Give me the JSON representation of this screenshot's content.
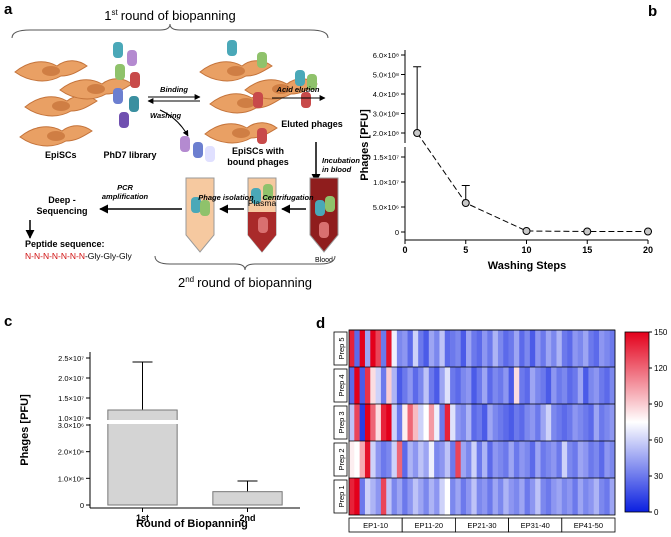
{
  "diagram": {
    "label": "a",
    "round1": {
      "number": "1",
      "suffix": "st",
      "text": "round of biopanning"
    },
    "round2": {
      "number": "2",
      "suffix": "nd",
      "text": "round of biopanning"
    },
    "cells": "EpiSCs",
    "library": "PhD7 library",
    "binding": "Binding",
    "washing": "Washing",
    "acid": "Acid elution",
    "eluted": "Eluted phages",
    "bound": [
      "EpiSCs with",
      "bound phages"
    ],
    "incubation": [
      "Incubation",
      "in blood"
    ],
    "sequencing": [
      "Deep -",
      "Sequencing"
    ],
    "pcr": [
      "PCR",
      "amplification"
    ],
    "isolation": "Phage isolation",
    "centrifugation": "Centrifugation",
    "plasma": "Plasma",
    "blood": "Blood",
    "peptide_title": "Peptide sequence:",
    "peptide_random": "N-N-N-N-N-N-N",
    "peptide_linker": "-Gly-Gly-Gly"
  },
  "chart_data": [
    {
      "type": "line",
      "panel": "b",
      "xlabel": "Washing Steps",
      "ylabel": "Phages [PFU]",
      "x": [
        1,
        5,
        10,
        15,
        20
      ],
      "values": [
        200000000,
        5800000,
        200000,
        100000,
        100000
      ],
      "errors": [
        340000000,
        3500000,
        0,
        0,
        0
      ],
      "xlim": [
        0,
        20
      ],
      "xticks": [
        0,
        5,
        10,
        15,
        20
      ],
      "ylim": [
        0,
        600000000
      ],
      "ybreak": [
        15000000,
        200000000
      ],
      "yticks": [
        0,
        {
          "value": 5000000,
          "label": "5.0×10⁶"
        },
        {
          "value": 10000000,
          "label": "1.0×10⁷"
        },
        {
          "value": 15000000,
          "label": "1.5×10⁷"
        },
        {
          "value": 200000000,
          "label": "2.0×10⁸"
        },
        {
          "value": 300000000,
          "label": "3.0×10⁸"
        },
        {
          "value": 400000000,
          "label": "4.0×10⁸"
        },
        {
          "value": 500000000,
          "label": "5.0×10⁸"
        },
        {
          "value": 600000000,
          "label": "6.0×10⁸"
        }
      ],
      "color": "#c8c8c8",
      "line_style": "dashed"
    },
    {
      "type": "bar",
      "panel": "c",
      "xlabel": "Round of Biopanning",
      "ylabel": "Phages [PFU]",
      "categories": [
        "1st",
        "2nd"
      ],
      "values": [
        12000000,
        500000
      ],
      "errors": [
        12000000,
        400000
      ],
      "ylim": [
        0,
        25000000
      ],
      "ybreak": [
        3000000,
        10000000
      ],
      "yticks": [
        0,
        {
          "value": 1000000,
          "label": "1.0×10⁶"
        },
        {
          "value": 2000000,
          "label": "2.0×10⁶"
        },
        {
          "value": 3000000,
          "label": "3.0×10⁶"
        },
        {
          "value": 10000000,
          "label": "1.0×10⁷"
        },
        {
          "value": 15000000,
          "label": "1.5×10⁷"
        },
        {
          "value": 20000000,
          "label": "2.0×10⁷"
        },
        {
          "value": 25000000,
          "label": "2.5×10⁷"
        }
      ],
      "color": "#d4d4d4"
    },
    {
      "type": "heatmap",
      "panel": "d",
      "rows": [
        "Prep 5",
        "Prep 4",
        "Prep 3",
        "Prep 2",
        "Prep 1"
      ],
      "column_groups": [
        "EP1-10",
        "EP11-20",
        "EP21-30",
        "EP31-40",
        "EP41-50"
      ],
      "values": [
        [
          140,
          25,
          150,
          45,
          150,
          130,
          30,
          145,
          70,
          35,
          40,
          25,
          60,
          30,
          20,
          45,
          35,
          55,
          25,
          30,
          35,
          20,
          45,
          30,
          25,
          40,
          30,
          50,
          35,
          25,
          30,
          45,
          25,
          35,
          20,
          40,
          30,
          45,
          35,
          50,
          30,
          25,
          40,
          35,
          45,
          30,
          25,
          40,
          35,
          30
        ],
        [
          25,
          150,
          20,
          135,
          85,
          60,
          30,
          90,
          50,
          20,
          30,
          40,
          25,
          35,
          55,
          30,
          20,
          45,
          65,
          30,
          25,
          35,
          40,
          20,
          30,
          45,
          25,
          35,
          30,
          40,
          20,
          85,
          30,
          25,
          45,
          35,
          30,
          20,
          40,
          30,
          35,
          25,
          30,
          45,
          20,
          35,
          40,
          30,
          25,
          35
        ],
        [
          55,
          130,
          10,
          150,
          120,
          85,
          140,
          150,
          60,
          30,
          80,
          120,
          95,
          60,
          75,
          105,
          70,
          30,
          140,
          65,
          40,
          35,
          50,
          25,
          30,
          20,
          45,
          35,
          30,
          25,
          20,
          30,
          25,
          35,
          40,
          30,
          45,
          60,
          35,
          30,
          25,
          30,
          40,
          35,
          30,
          25,
          45,
          30,
          35,
          40
        ],
        [
          80,
          75,
          100,
          145,
          60,
          40,
          30,
          35,
          60,
          120,
          25,
          50,
          40,
          55,
          45,
          70,
          35,
          40,
          55,
          30,
          130,
          45,
          35,
          60,
          30,
          50,
          25,
          40,
          35,
          30,
          45,
          30,
          40,
          35,
          25,
          45,
          30,
          35,
          40,
          30,
          60,
          35,
          30,
          45,
          40,
          30,
          35,
          25,
          40,
          35
        ],
        [
          140,
          150,
          30,
          60,
          50,
          40,
          130,
          55,
          35,
          45,
          30,
          40,
          55,
          45,
          35,
          50,
          40,
          60,
          75,
          35,
          45,
          30,
          40,
          55,
          35,
          40,
          30,
          45,
          35,
          50,
          40,
          35,
          45,
          30,
          40,
          55,
          35,
          30,
          40,
          45,
          35,
          40,
          30,
          45,
          35,
          40,
          50,
          35,
          30,
          45
        ]
      ],
      "zlim": [
        0,
        150
      ],
      "zticks": [
        0,
        30,
        60,
        90,
        120,
        150
      ],
      "colors": [
        "#0a1fe0",
        "#ffffff",
        "#e3001b"
      ]
    }
  ]
}
